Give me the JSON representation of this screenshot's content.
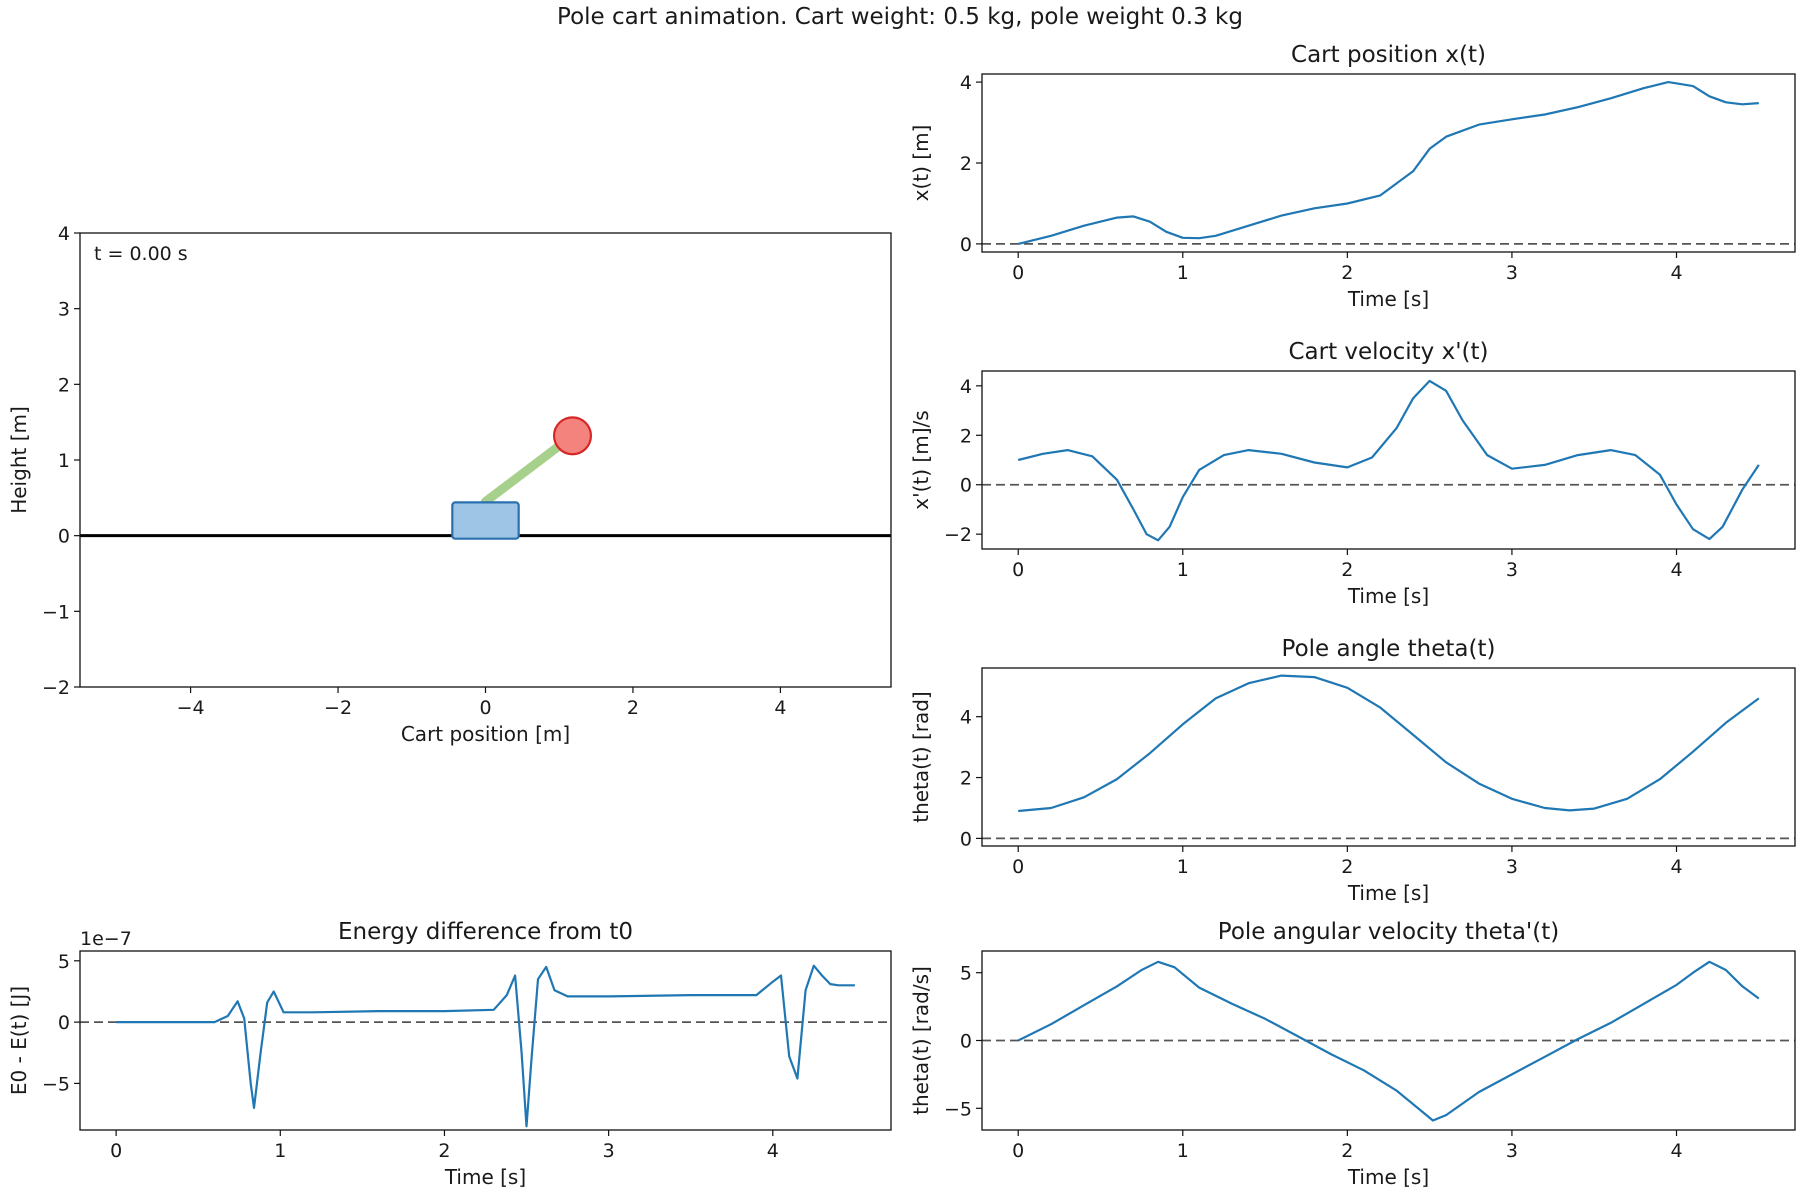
{
  "figure": {
    "suptitle": "Pole cart animation. Cart weight: 0.5 kg, pole weight 0.3 kg"
  },
  "colors": {
    "line": "#1f77b4",
    "cart_fill": "#9ec4e6",
    "cart_edge": "#2a6fae",
    "pole": "#a8d08d",
    "bob_fill": "#f4837d",
    "bob_edge": "#d62728",
    "zero_line": "#555555"
  },
  "chart_data": [
    {
      "id": "animation",
      "type": "scatter",
      "title": "",
      "annotation": "t = 0.00 s",
      "xlabel": "Cart position [m]",
      "ylabel": "Height [m]",
      "xlim": [
        -5.5,
        5.5
      ],
      "ylim": [
        -2,
        4
      ],
      "xticks": [
        -4,
        -2,
        0,
        2,
        4
      ],
      "yticks": [
        -2,
        -1,
        0,
        1,
        2,
        3,
        4
      ],
      "cart": {
        "x": 0,
        "y": 0.2,
        "width": 0.9,
        "height": 0.48
      },
      "pole": {
        "x0": 0,
        "y0": 0.45,
        "x1": 1.18,
        "y1": 1.32
      },
      "bob": {
        "x": 1.18,
        "y": 1.32,
        "radius": 0.25
      },
      "ground_y": 0
    },
    {
      "id": "position",
      "type": "line",
      "title": "Cart position x(t)",
      "xlabel": "Time [s]",
      "ylabel": "x(t) [m]",
      "xlim": [
        -0.22,
        4.72
      ],
      "ylim": [
        -0.2,
        4.2
      ],
      "xticks": [
        0,
        1,
        2,
        3,
        4
      ],
      "yticks": [
        0,
        2,
        4
      ],
      "x": [
        0,
        0.2,
        0.4,
        0.6,
        0.7,
        0.8,
        0.9,
        1.0,
        1.1,
        1.2,
        1.4,
        1.6,
        1.8,
        2.0,
        2.2,
        2.4,
        2.5,
        2.6,
        2.8,
        3.0,
        3.2,
        3.4,
        3.6,
        3.8,
        3.95,
        4.1,
        4.2,
        4.3,
        4.4,
        4.5
      ],
      "values": [
        0,
        0.2,
        0.45,
        0.65,
        0.68,
        0.55,
        0.3,
        0.15,
        0.14,
        0.2,
        0.45,
        0.7,
        0.88,
        1.0,
        1.2,
        1.8,
        2.35,
        2.65,
        2.95,
        3.08,
        3.2,
        3.38,
        3.6,
        3.85,
        4.0,
        3.9,
        3.65,
        3.5,
        3.45,
        3.48
      ]
    },
    {
      "id": "velocity",
      "type": "line",
      "title": "Cart velocity x'(t)",
      "xlabel": "Time [s]",
      "ylabel": "x'(t) [m]/s",
      "xlim": [
        -0.22,
        4.72
      ],
      "ylim": [
        -2.6,
        4.6
      ],
      "xticks": [
        0,
        1,
        2,
        3,
        4
      ],
      "yticks": [
        -2,
        0,
        2,
        4
      ],
      "x": [
        0,
        0.15,
        0.3,
        0.45,
        0.6,
        0.7,
        0.78,
        0.85,
        0.92,
        1.0,
        1.1,
        1.25,
        1.4,
        1.6,
        1.8,
        2.0,
        2.15,
        2.3,
        2.4,
        2.5,
        2.6,
        2.7,
        2.85,
        3.0,
        3.2,
        3.4,
        3.6,
        3.75,
        3.9,
        4.0,
        4.1,
        4.2,
        4.28,
        4.4,
        4.5
      ],
      "values": [
        1.0,
        1.25,
        1.4,
        1.15,
        0.2,
        -1.0,
        -2.0,
        -2.25,
        -1.7,
        -0.5,
        0.6,
        1.2,
        1.4,
        1.25,
        0.9,
        0.7,
        1.1,
        2.3,
        3.5,
        4.2,
        3.8,
        2.6,
        1.2,
        0.65,
        0.8,
        1.2,
        1.4,
        1.2,
        0.4,
        -0.8,
        -1.8,
        -2.2,
        -1.7,
        -0.2,
        0.8
      ]
    },
    {
      "id": "angle",
      "type": "line",
      "title": "Pole angle theta(t)",
      "xlabel": "Time [s]",
      "ylabel": "theta(t) [rad]",
      "xlim": [
        -0.22,
        4.72
      ],
      "ylim": [
        -0.25,
        5.6
      ],
      "xticks": [
        0,
        1,
        2,
        3,
        4
      ],
      "yticks": [
        0,
        2,
        4
      ],
      "x": [
        0,
        0.2,
        0.4,
        0.6,
        0.8,
        1.0,
        1.2,
        1.4,
        1.6,
        1.8,
        2.0,
        2.2,
        2.4,
        2.6,
        2.8,
        3.0,
        3.2,
        3.35,
        3.5,
        3.7,
        3.9,
        4.1,
        4.3,
        4.5
      ],
      "values": [
        0.9,
        1.0,
        1.35,
        1.95,
        2.8,
        3.75,
        4.6,
        5.1,
        5.35,
        5.3,
        4.95,
        4.3,
        3.4,
        2.5,
        1.8,
        1.3,
        1.0,
        0.92,
        0.98,
        1.3,
        1.95,
        2.85,
        3.8,
        4.6
      ]
    },
    {
      "id": "angular_velocity",
      "type": "line",
      "title": "Pole angular velocity theta'(t)",
      "xlabel": "Time [s]",
      "ylabel": "theta(t) [rad/s]",
      "xlim": [
        -0.22,
        4.72
      ],
      "ylim": [
        -6.6,
        6.6
      ],
      "xticks": [
        0,
        1,
        2,
        3,
        4
      ],
      "yticks": [
        -5,
        0,
        5
      ],
      "x": [
        0,
        0.2,
        0.4,
        0.6,
        0.75,
        0.85,
        0.95,
        1.1,
        1.3,
        1.5,
        1.7,
        1.9,
        2.1,
        2.3,
        2.45,
        2.52,
        2.6,
        2.8,
        3.0,
        3.2,
        3.4,
        3.6,
        3.8,
        4.0,
        4.1,
        4.2,
        4.3,
        4.4,
        4.5
      ],
      "values": [
        0,
        1.2,
        2.6,
        4.0,
        5.2,
        5.8,
        5.4,
        3.9,
        2.7,
        1.6,
        0.3,
        -1.0,
        -2.2,
        -3.7,
        -5.2,
        -5.9,
        -5.5,
        -3.8,
        -2.5,
        -1.2,
        0.1,
        1.3,
        2.7,
        4.1,
        5.0,
        5.8,
        5.2,
        4.0,
        3.1
      ]
    },
    {
      "id": "energy",
      "type": "line",
      "title": "Energy difference from t0",
      "offset_text": "1e−7",
      "xlabel": "Time [s]",
      "ylabel": "E0 - E(t) [J]",
      "xlim": [
        -0.22,
        4.72
      ],
      "ylim": [
        -8.8,
        5.8
      ],
      "xticks": [
        0,
        1,
        2,
        3,
        4
      ],
      "yticks": [
        -5,
        0,
        5
      ],
      "x": [
        0,
        0.3,
        0.6,
        0.68,
        0.74,
        0.78,
        0.82,
        0.84,
        0.88,
        0.92,
        0.96,
        1.02,
        1.2,
        1.6,
        2.0,
        2.3,
        2.38,
        2.43,
        2.47,
        2.5,
        2.53,
        2.57,
        2.62,
        2.67,
        2.75,
        3.0,
        3.5,
        3.9,
        4.0,
        4.05,
        4.1,
        4.15,
        4.2,
        4.25,
        4.3,
        4.35,
        4.4,
        4.5
      ],
      "values": [
        0,
        0,
        0,
        0.5,
        1.7,
        0.3,
        -5.0,
        -7.0,
        -2.5,
        1.6,
        2.5,
        0.8,
        0.8,
        0.9,
        0.9,
        1.0,
        2.2,
        3.8,
        -2.5,
        -8.5,
        -3.0,
        3.5,
        4.5,
        2.6,
        2.1,
        2.1,
        2.2,
        2.2,
        3.3,
        3.8,
        -2.8,
        -4.6,
        2.6,
        4.6,
        3.8,
        3.1,
        3.0,
        3.0
      ]
    }
  ]
}
